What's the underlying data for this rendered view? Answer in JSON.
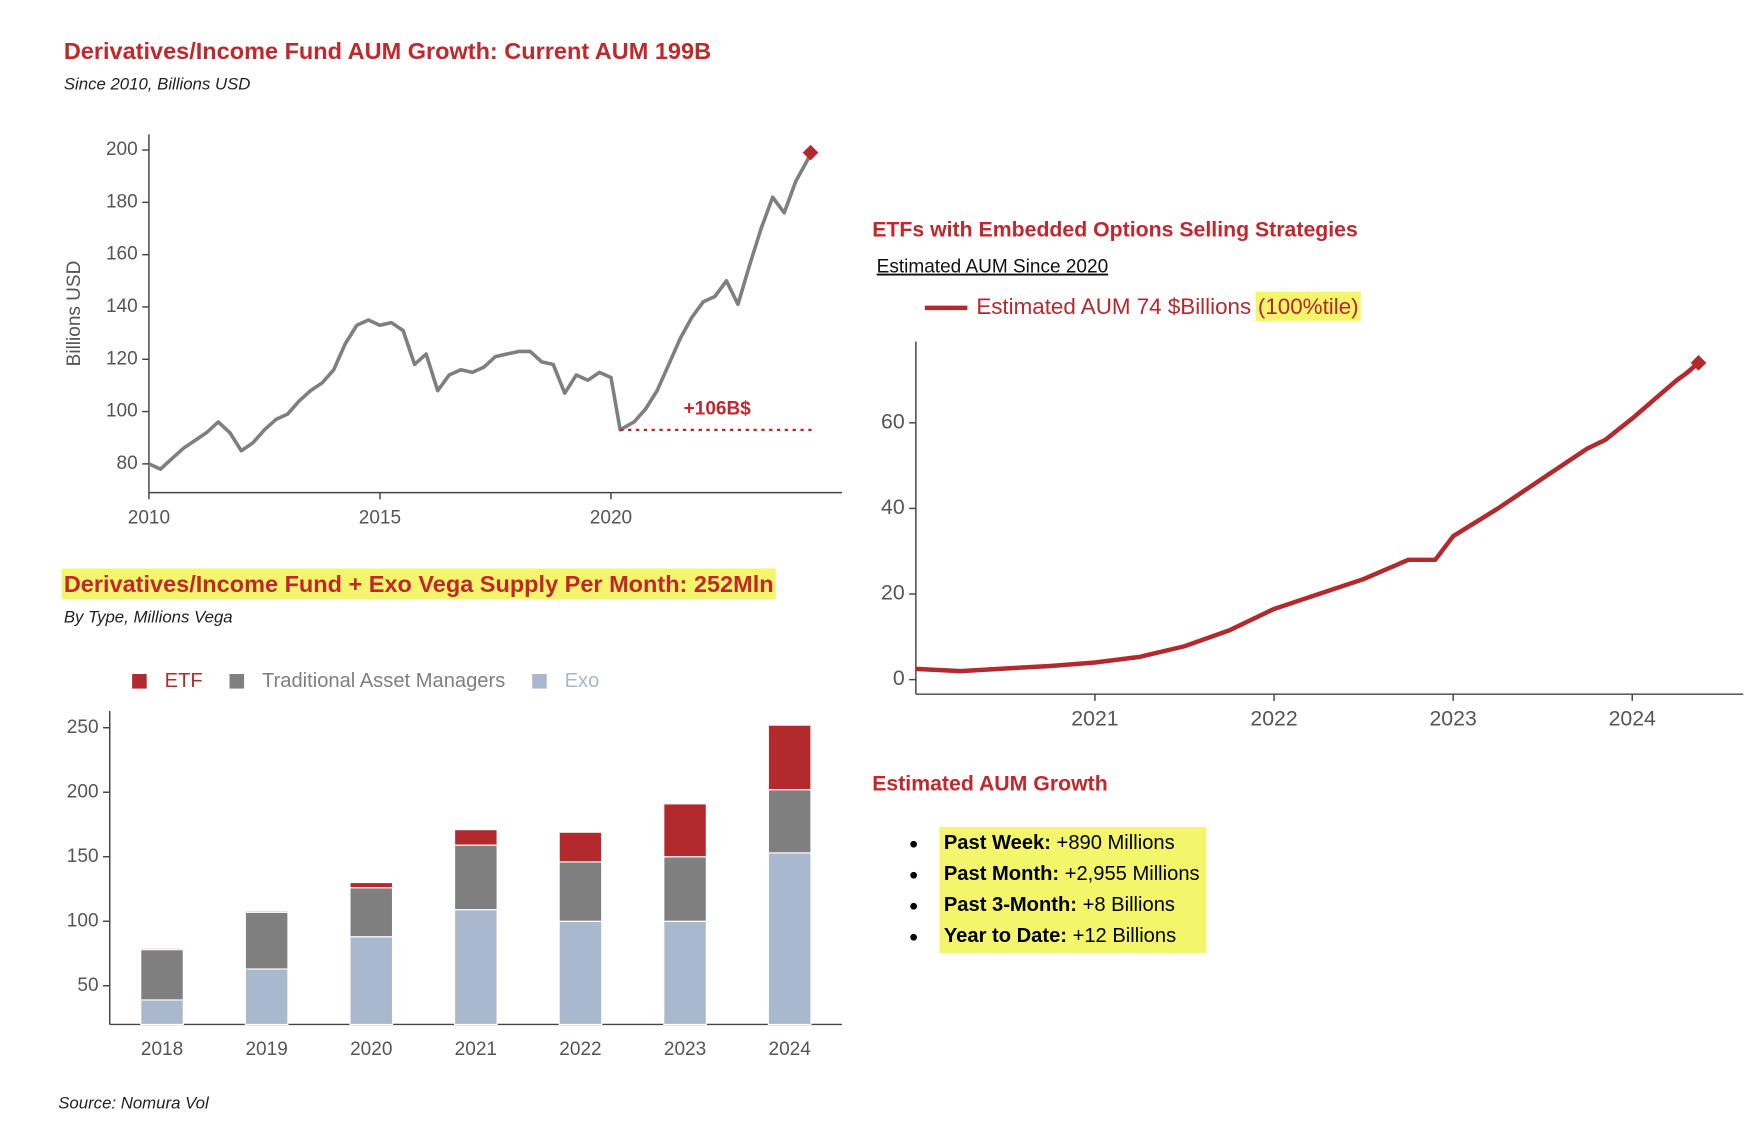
{
  "chart_data": [
    {
      "type": "line",
      "title": "Derivatives/Income Fund AUM Growth: Current AUM 199B",
      "subtitle": "Since 2010, Billions USD",
      "y_label": "Billions USD",
      "x": [
        2010,
        2010.25,
        2010.5,
        2010.75,
        2011,
        2011.25,
        2011.5,
        2011.75,
        2012,
        2012.25,
        2012.5,
        2012.75,
        2013,
        2013.25,
        2013.5,
        2013.75,
        2014,
        2014.25,
        2014.5,
        2014.75,
        2015,
        2015.25,
        2015.5,
        2015.75,
        2016,
        2016.25,
        2016.5,
        2016.75,
        2017,
        2017.25,
        2017.5,
        2017.75,
        2018,
        2018.25,
        2018.5,
        2018.75,
        2019,
        2019.25,
        2019.5,
        2019.75,
        2020,
        2020.2,
        2020.5,
        2020.75,
        2021,
        2021.25,
        2021.5,
        2021.75,
        2022,
        2022.25,
        2022.5,
        2022.75,
        2023,
        2023.25,
        2023.5,
        2023.75,
        2024,
        2024.25,
        2024.32
      ],
      "values": [
        80,
        78,
        82,
        86,
        89,
        92,
        96,
        92,
        85,
        88,
        93,
        97,
        99,
        104,
        108,
        111,
        116,
        126,
        133,
        135,
        133,
        134,
        131,
        118,
        122,
        108,
        114,
        116,
        115,
        117,
        121,
        122,
        123,
        123,
        119,
        118,
        107,
        114,
        112,
        115,
        113,
        93,
        96,
        101,
        108,
        118,
        128,
        136,
        142,
        144,
        150,
        141,
        156,
        170,
        182,
        176,
        188,
        196,
        199
      ],
      "color": "#7f7f7f",
      "xlim": [
        2010,
        2025
      ],
      "xticks": [
        2010,
        2015,
        2020
      ],
      "ylim": [
        69,
        206
      ],
      "yticks": [
        80,
        100,
        120,
        140,
        160,
        180,
        200
      ],
      "end_marker": {
        "shape": "diamond",
        "color": "#b22a2e"
      },
      "annotations": [
        {
          "text": "+106B$",
          "y": 93,
          "x": [
            2020.2,
            2024.4
          ],
          "color": "#c0282d"
        }
      ]
    },
    {
      "type": "line",
      "title": "ETFs with Embedded Options Selling Strategies",
      "subtitle": "Estimated AUM Since 2020",
      "x": [
        2020,
        2020.25,
        2020.5,
        2020.75,
        2021,
        2021.25,
        2021.5,
        2021.75,
        2022,
        2022.25,
        2022.5,
        2022.75,
        2022.9,
        2023,
        2023.25,
        2023.5,
        2023.75,
        2023.85,
        2024,
        2024.25,
        2024.3,
        2024.37
      ],
      "series": [
        {
          "name": "Estimated AUM 74 $Billions",
          "note": "(100%tile)",
          "color": "#b22a2e",
          "values": [
            2.5,
            2,
            2.6,
            3.2,
            4,
            5.3,
            7.8,
            11.5,
            16.5,
            20,
            23.5,
            28,
            28,
            33.5,
            40,
            47,
            54,
            56,
            61,
            70,
            71.5,
            74
          ]
        }
      ],
      "xlim": [
        2020,
        2024.62
      ],
      "xticks": [
        2021,
        2022,
        2023,
        2024
      ],
      "ylim": [
        -3.4,
        79
      ],
      "yticks": [
        0,
        20,
        40,
        60
      ],
      "end_marker": {
        "shape": "diamond",
        "color": "#b22a2e"
      },
      "highlight": "#f3f56b"
    },
    {
      "type": "bar",
      "title": "Derivatives/Income Fund + Exo Vega Supply Per Month: 252Mln",
      "subtitle": "By Type, Millions Vega",
      "title_highlight": "#f3f56b",
      "categories": [
        "2018",
        "2019",
        "2020",
        "2021",
        "2022",
        "2023",
        "2024"
      ],
      "stacked": true,
      "series": [
        {
          "name": "ETF",
          "color": "#b22a2e",
          "values": [
            1,
            1,
            4,
            12,
            23,
            41,
            50
          ]
        },
        {
          "name": "Traditional Asset Managers",
          "color": "#7f7f7f",
          "values": [
            39,
            44,
            38,
            50,
            46,
            50,
            49
          ]
        },
        {
          "name": "Exo",
          "color": "#a9b8cc",
          "values": [
            39,
            63,
            88,
            109,
            100,
            100,
            153
          ]
        }
      ],
      "ylim": [
        20,
        263
      ],
      "yticks": [
        50,
        100,
        150,
        200,
        250
      ]
    }
  ],
  "growth": {
    "title": "Estimated AUM Growth",
    "highlight": "#f3f56b",
    "items": [
      {
        "label": "Past Week:",
        "value": "+890 Millions"
      },
      {
        "label": "Past Month:",
        "value": "+2,955 Millions"
      },
      {
        "label": "Past 3-Month:",
        "value": "+8 Billions"
      },
      {
        "label": "Year to Date:",
        "value": "+12 Billions"
      }
    ]
  },
  "source": "Source: Nomura Vol"
}
